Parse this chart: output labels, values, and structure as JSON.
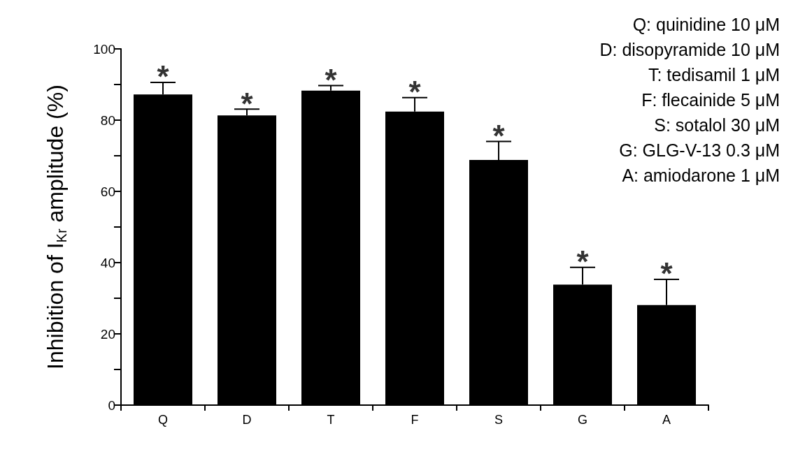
{
  "chart_data": {
    "type": "bar",
    "ylabel": "Inhibition of I$_{Kr}$ amplitude (%)",
    "categories": [
      "Q",
      "D",
      "T",
      "F",
      "S",
      "G",
      "A"
    ],
    "values": [
      87.2,
      81.3,
      88.3,
      82.4,
      68.8,
      33.8,
      28.1
    ],
    "errors": [
      [
        87.2,
        90.6
      ],
      [
        81.3,
        83.1
      ],
      [
        88.3,
        89.7
      ],
      [
        82.4,
        86.3
      ],
      [
        68.8,
        74.0
      ],
      [
        33.8,
        38.7
      ],
      [
        28.1,
        35.3
      ]
    ],
    "color": "#000000",
    "ylim": [
      0,
      100
    ],
    "yticks": [
      0,
      {
        "value": 10,
        "label": null
      },
      20,
      {
        "value": 30,
        "label": null
      },
      40,
      {
        "value": 50,
        "label": null
      },
      60,
      {
        "value": 70,
        "label": null
      },
      80,
      {
        "value": 90,
        "label": null
      },
      100
    ],
    "grid": false,
    "annotations": [
      "Q: quinidine 10 μM",
      "D: disopyramide 10 μM",
      "T: tedisamil 1 μM",
      "F: flecainide 5 μM",
      "S: sotalol 30 μM",
      "G: GLG-V-13 0.3 μM",
      "A: amiodarone 1 μM",
      {
        "text": "*",
        "x": "Q",
        "y": 90.6
      },
      {
        "text": "*",
        "x": "D",
        "y": 83.1
      },
      {
        "text": "*",
        "x": "T",
        "y": 89.7
      },
      {
        "text": "*",
        "x": "F",
        "y": 86.3
      },
      {
        "text": "*",
        "x": "S",
        "y": 74.0
      },
      {
        "text": "*",
        "x": "G",
        "y": 38.7
      },
      {
        "text": "*",
        "x": "A",
        "y": 35.3
      }
    ]
  }
}
